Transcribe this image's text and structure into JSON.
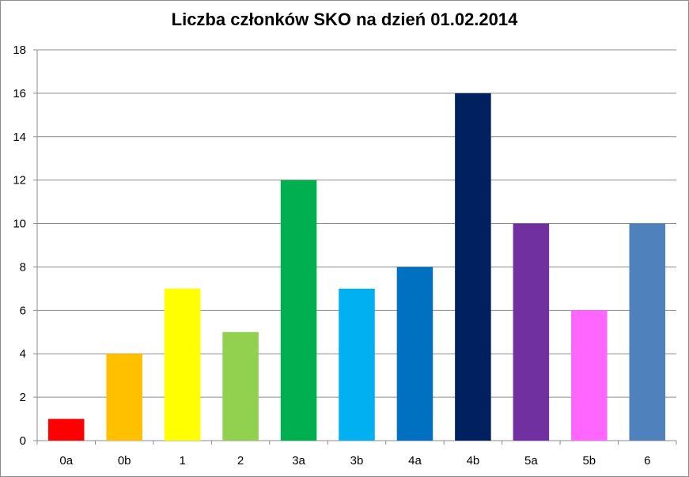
{
  "chart_data": {
    "type": "bar",
    "title": "Liczba członków SKO na dzień 01.02.2014",
    "xlabel": "",
    "ylabel": "",
    "categories": [
      "0a",
      "0b",
      "1",
      "2",
      "3a",
      "3b",
      "4a",
      "4b",
      "5a",
      "5b",
      "6"
    ],
    "values": [
      1,
      4,
      7,
      5,
      12,
      7,
      8,
      16,
      10,
      6,
      10
    ],
    "colors": [
      "#ff0000",
      "#ffc000",
      "#ffff00",
      "#92d050",
      "#00b050",
      "#00b0f0",
      "#0070c0",
      "#002060",
      "#7030a0",
      "#ff66ff",
      "#4f81bd"
    ],
    "ylim": [
      0,
      18
    ],
    "yticks": [
      0,
      2,
      4,
      6,
      8,
      10,
      12,
      14,
      16,
      18
    ],
    "grid": true,
    "legend": "none"
  }
}
